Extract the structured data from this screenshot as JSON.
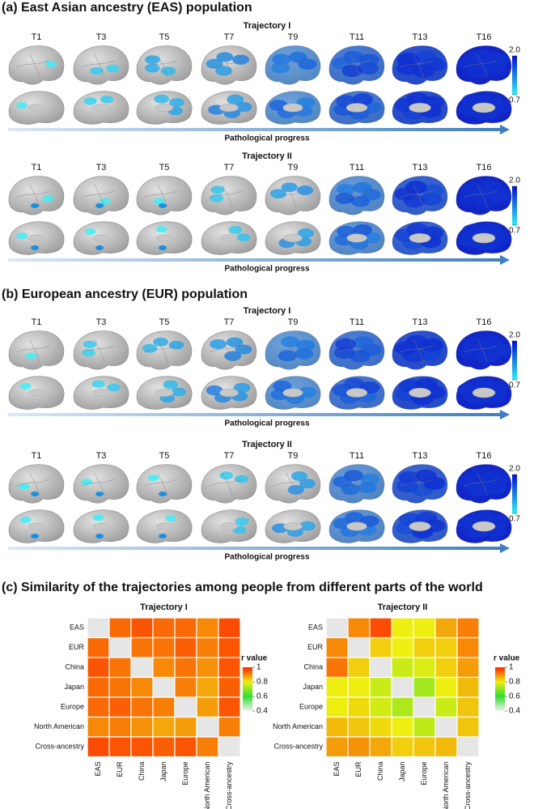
{
  "panels": [
    {
      "title": "(a) East Asian ancestry (EAS) population",
      "trajectories": [
        {
          "name": "Trajectory I",
          "timepoints": [
            "T1",
            "T3",
            "T5",
            "T7",
            "T9",
            "T11",
            "T13",
            "T16"
          ],
          "progress_label": "Pathological progress",
          "colorbar_ticks": [
            {
              "value": 2,
              "label": "2.0"
            },
            0.7
          ]
        },
        {
          "name": "Trajectory II",
          "timepoints": [
            "T1",
            "T3",
            "T5",
            "T7",
            "T9",
            "T11",
            "T13",
            "T16"
          ],
          "progress_label": "Pathological progress",
          "colorbar_ticks": [
            {
              "value": 2,
              "label": "2.0"
            },
            0.7
          ]
        }
      ]
    },
    {
      "title": "(b) European ancestry (EUR) population",
      "trajectories": [
        {
          "name": "Trajectory I",
          "timepoints": [
            "T1",
            "T3",
            "T5",
            "T7",
            "T9",
            "T11",
            "T13",
            "T16"
          ],
          "progress_label": "Pathological progress",
          "colorbar_ticks": [
            {
              "value": 2,
              "label": "2.0"
            },
            0.7
          ]
        },
        {
          "name": "Trajectory II",
          "timepoints": [
            "T1",
            "T3",
            "T5",
            "T7",
            "T9",
            "T11",
            "T13",
            "T16"
          ],
          "progress_label": "Pathological progress",
          "colorbar_ticks": [
            {
              "value": 2,
              "label": "2.0"
            },
            0.7
          ]
        }
      ]
    }
  ],
  "similarity_title": "(c) Similarity of the trajectories among people from different parts of the world",
  "chart_data": [
    {
      "type": "heatmap",
      "title": "Trajectory I",
      "x_categories": [
        "EAS",
        "EUR",
        "China",
        "Japan",
        "Europe",
        "North American",
        "Cross-ancestry"
      ],
      "y_categories": [
        "EAS",
        "EUR",
        "China",
        "Japan",
        "Europe",
        "North American",
        "Cross-ancestry"
      ],
      "values": [
        [
          null,
          0.93,
          0.95,
          0.93,
          0.93,
          0.9,
          0.96
        ],
        [
          0.93,
          null,
          0.92,
          0.92,
          0.94,
          0.91,
          0.95
        ],
        [
          0.95,
          0.92,
          null,
          0.9,
          0.92,
          0.89,
          0.95
        ],
        [
          0.93,
          0.92,
          0.9,
          null,
          0.91,
          0.87,
          0.94
        ],
        [
          0.93,
          0.94,
          0.92,
          0.91,
          null,
          0.88,
          0.95
        ],
        [
          0.9,
          0.91,
          0.89,
          0.87,
          0.88,
          null,
          0.91
        ],
        [
          0.96,
          0.95,
          0.95,
          0.94,
          0.95,
          0.91,
          null
        ]
      ],
      "colorbar_title": "r value",
      "clim": [
        0.4,
        1
      ],
      "cticks": [
        0.4,
        0.6,
        0.8,
        1
      ],
      "colors": [
        "#f2f2f2",
        "#33dd33",
        "#eeee10",
        "#ff2200"
      ]
    },
    {
      "type": "heatmap",
      "title": "Trajectory II",
      "x_categories": [
        "EAS",
        "EUR",
        "China",
        "Japan",
        "Europe",
        "North American",
        "Cross-ancestry"
      ],
      "y_categories": [
        "EAS",
        "EUR",
        "China",
        "Japan",
        "Europe",
        "North American",
        "Cross-ancestry"
      ],
      "values": [
        [
          null,
          0.9,
          0.96,
          0.8,
          0.8,
          0.87,
          0.91
        ],
        [
          0.9,
          null,
          0.83,
          0.8,
          0.83,
          0.83,
          0.9
        ],
        [
          0.92,
          0.83,
          null,
          0.76,
          0.78,
          0.83,
          0.88
        ],
        [
          0.8,
          0.8,
          0.76,
          null,
          0.72,
          0.8,
          0.85
        ],
        [
          0.8,
          0.82,
          0.77,
          0.73,
          null,
          0.76,
          0.84
        ],
        [
          0.85,
          0.84,
          0.82,
          0.8,
          0.75,
          null,
          0.84
        ],
        [
          0.88,
          0.89,
          0.87,
          0.83,
          0.84,
          0.85,
          null
        ]
      ],
      "colorbar_title": "r value",
      "clim": [
        0.4,
        1
      ],
      "cticks": [
        0.4,
        0.6,
        0.8,
        1
      ],
      "colors": [
        "#f2f2f2",
        "#33dd33",
        "#eeee10",
        "#ff2200"
      ]
    }
  ]
}
